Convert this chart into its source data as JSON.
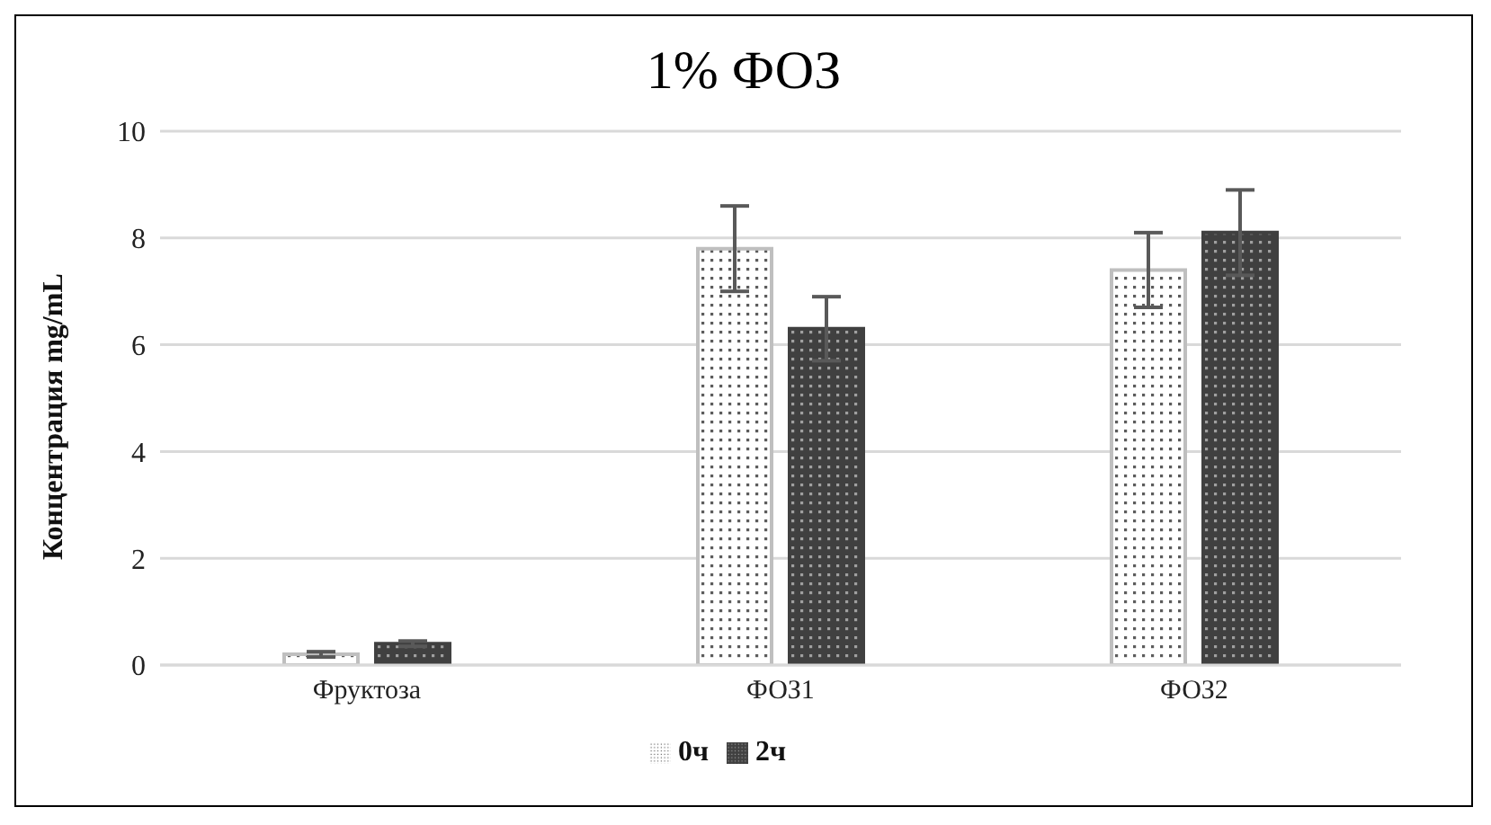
{
  "chart_data": {
    "type": "bar",
    "title": "1% ФОЗ",
    "ylabel": "Концентрация mg/mL",
    "categories": [
      "Фруктоза",
      "ФОЗ1",
      "ФОЗ2"
    ],
    "series": [
      {
        "name": "0ч",
        "color": "#bfbfbf",
        "values": [
          0.2,
          7.8,
          7.4
        ],
        "errors": [
          0.05,
          0.8,
          0.7
        ]
      },
      {
        "name": "2ч",
        "color": "#404040",
        "values": [
          0.4,
          6.3,
          8.1
        ],
        "errors": [
          0.05,
          0.6,
          0.8
        ]
      }
    ],
    "ylim": [
      0,
      10
    ],
    "yticks": [
      0,
      2,
      4,
      6,
      8,
      10
    ],
    "grid": "y",
    "legend": "bottom"
  }
}
